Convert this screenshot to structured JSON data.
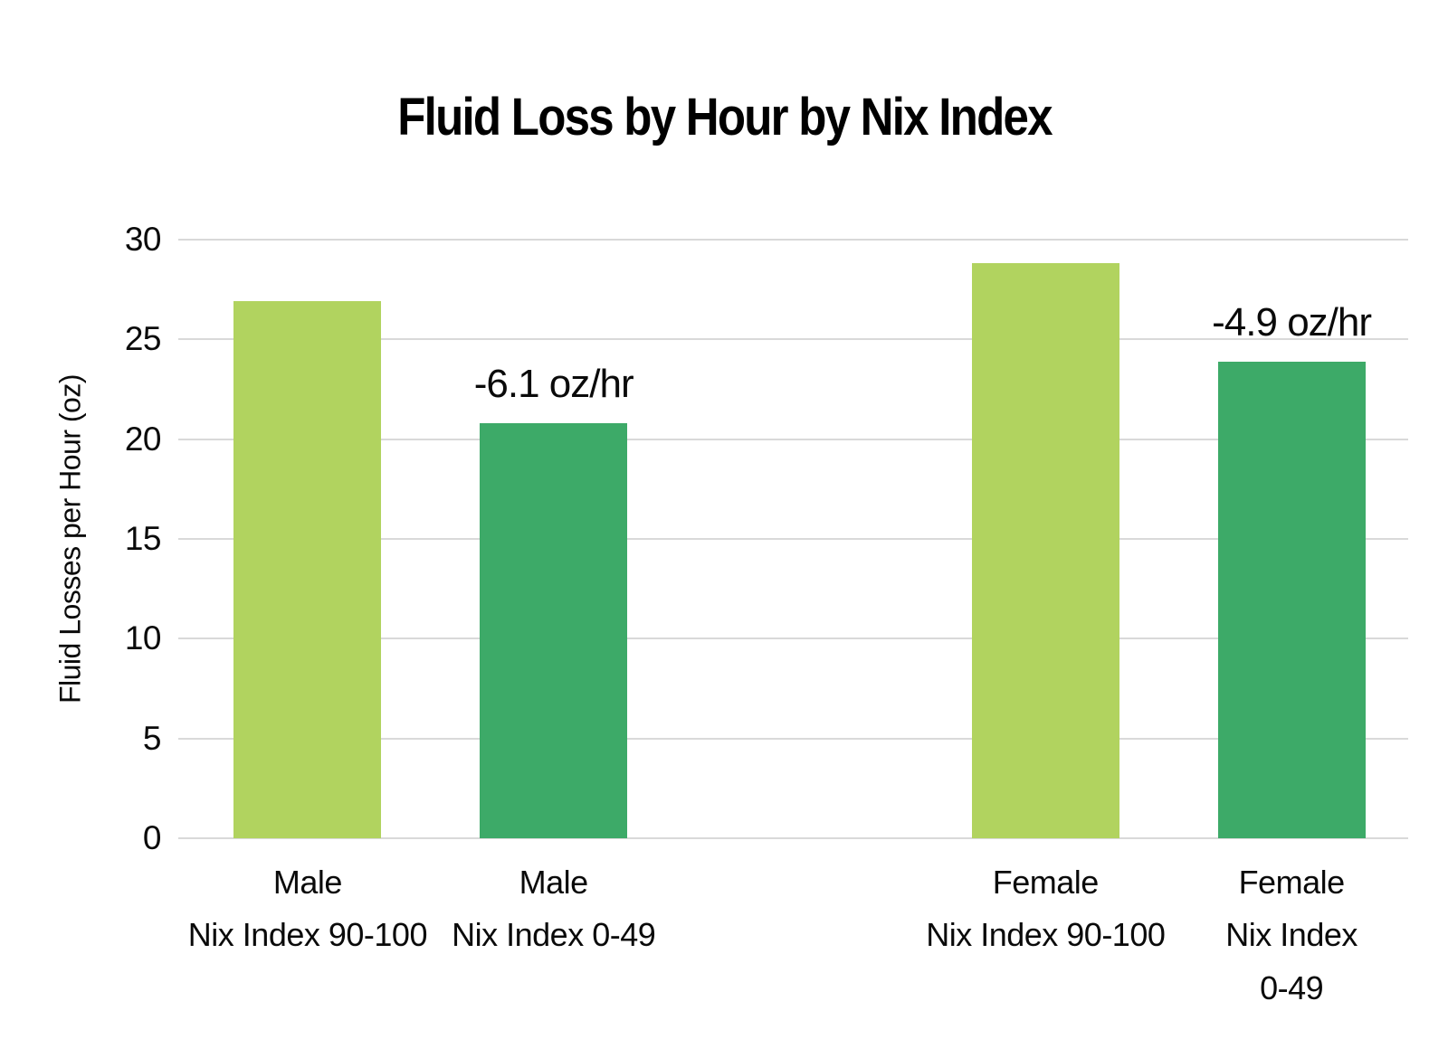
{
  "chart_data": {
    "type": "bar",
    "title": "Fluid Loss by Hour by Nix Index",
    "xlabel": "",
    "ylabel": "Fluid Losses per Hour (oz)",
    "ylim": [
      0,
      30
    ],
    "yticks": [
      0,
      5,
      10,
      15,
      20,
      25,
      30
    ],
    "grid": true,
    "legend": false,
    "categories": [
      "Male\nNix Index 90-100",
      "Male\nNix Index 0-49",
      "Female\nNix Index 90-100",
      "Female\nNix Index 0-49"
    ],
    "values": [
      26.9,
      20.8,
      28.8,
      23.9
    ],
    "bars": [
      {
        "category": "Male\nNix Index 90-100",
        "value": 26.9,
        "color": "#b1d35f",
        "annotation": ""
      },
      {
        "category": "Male\nNix Index 0-49",
        "value": 20.8,
        "color": "#3daa68",
        "annotation": "-6.1 oz/hr"
      },
      {
        "category": "Female\nNix Index 90-100",
        "value": 28.8,
        "color": "#b1d35f",
        "annotation": ""
      },
      {
        "category": "Female\nNix Index 0-49",
        "value": 23.9,
        "color": "#3daa68",
        "annotation": "-4.9 oz/hr"
      }
    ]
  },
  "colors": {
    "light_green": "#b1d35f",
    "dark_green": "#3daa68",
    "gridline": "#d9d9d9",
    "text": "#0a0a0a",
    "background": "#ffffff"
  }
}
